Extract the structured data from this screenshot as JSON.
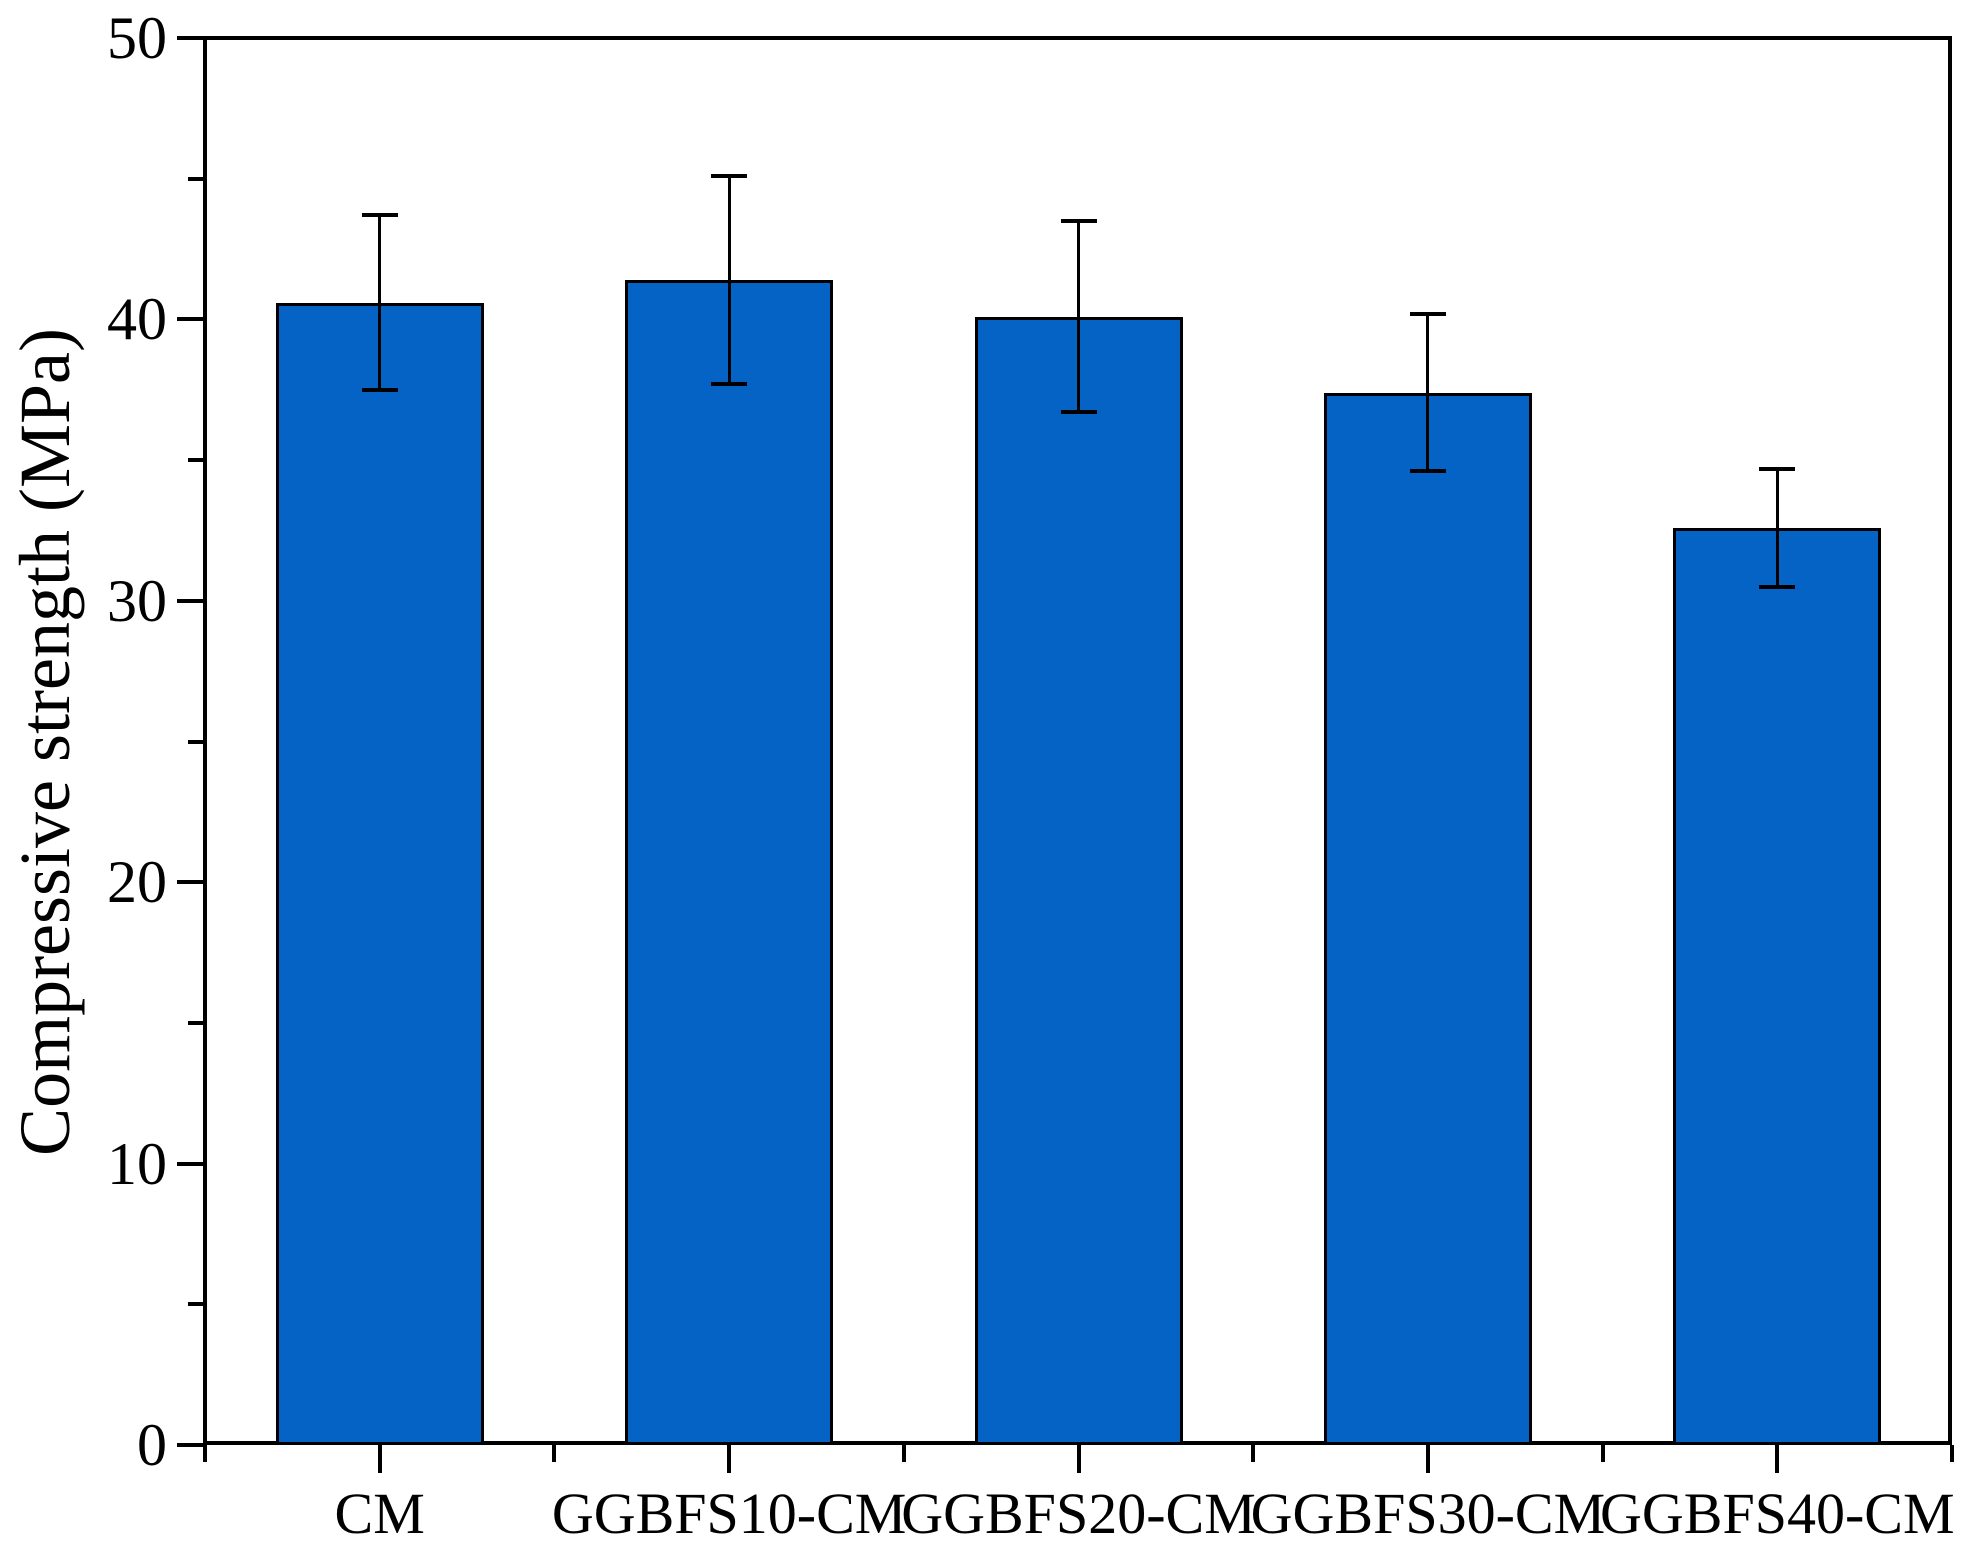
{
  "figure": {
    "background": "#ffffff"
  },
  "chart_data": {
    "type": "bar",
    "title": "",
    "categories": [
      "CM",
      "GGBFS10-CM",
      "GGBFS20-CM",
      "GGBFS30-CM",
      "GGBFS40-CM"
    ],
    "values": [
      40.6,
      41.4,
      40.1,
      37.4,
      32.6
    ],
    "error_bars": [
      3.1,
      3.7,
      3.4,
      2.8,
      2.1
    ],
    "xlabel": "",
    "ylabel": "Compressive strength (MPa)",
    "ylim": [
      0,
      50
    ],
    "y_major_ticks": [
      0,
      10,
      20,
      30,
      40,
      50
    ],
    "y_minor_ticks": [
      5,
      15,
      25,
      35,
      45
    ],
    "grid": false,
    "legend": null,
    "bar_color": "#0563C5",
    "bar_border_color": "#000000",
    "error_color": "#000000",
    "axis_color": "#000000"
  }
}
